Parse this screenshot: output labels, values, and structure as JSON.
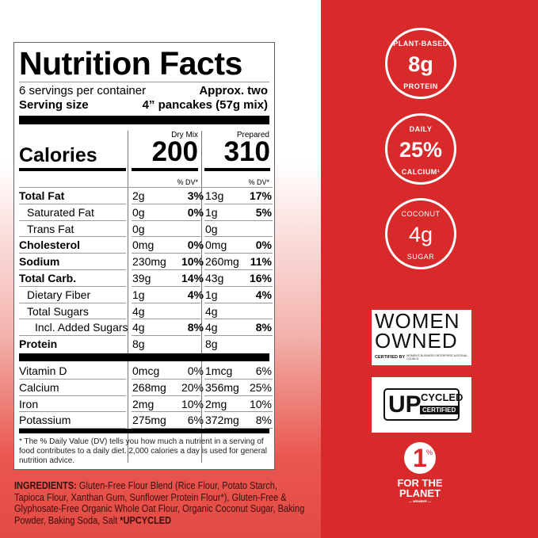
{
  "label": {
    "title": "Nutrition Facts",
    "servings": "6 servings per container",
    "serving_size_label": "Serving size",
    "serving_size_line1": "Approx. two",
    "serving_size_line2": "4” pancakes (57g mix)",
    "calories_label": "Calories",
    "col1_header": "Dry Mix",
    "col2_header": "Prepared",
    "col1_calories": "200",
    "col2_calories": "310",
    "dv_header": "% DV*",
    "rows": [
      {
        "name": "Total Fat",
        "d1": "2g",
        "p1": "3%",
        "d2": "13g",
        "p2": "17%",
        "bold": true,
        "indent": 0
      },
      {
        "name": "Saturated Fat",
        "d1": "0g",
        "p1": "0%",
        "d2": "1g",
        "p2": "5%",
        "bold": false,
        "indent": 1
      },
      {
        "name": "Trans Fat",
        "d1": "0g",
        "p1": "",
        "d2": "0g",
        "p2": "",
        "bold": false,
        "indent": 1
      },
      {
        "name": "Cholesterol",
        "d1": "0mg",
        "p1": "0%",
        "d2": "0mg",
        "p2": "0%",
        "bold": true,
        "indent": 0
      },
      {
        "name": "Sodium",
        "d1": "230mg",
        "p1": "10%",
        "d2": "260mg",
        "p2": "11%",
        "bold": true,
        "indent": 0
      },
      {
        "name": "Total Carb.",
        "d1": "39g",
        "p1": "14%",
        "d2": "43g",
        "p2": "16%",
        "bold": true,
        "indent": 0
      },
      {
        "name": "Dietary Fiber",
        "d1": "1g",
        "p1": "4%",
        "d2": "1g",
        "p2": "4%",
        "bold": false,
        "indent": 1
      },
      {
        "name": "Total Sugars",
        "d1": "4g",
        "p1": "",
        "d2": "4g",
        "p2": "",
        "bold": false,
        "indent": 1
      },
      {
        "name": "Incl. Added Sugars",
        "d1": "4g",
        "p1": "8%",
        "d2": "4g",
        "p2": "8%",
        "bold": false,
        "indent": 2
      },
      {
        "name": "Protein",
        "d1": "8g",
        "p1": "",
        "d2": "8g",
        "p2": "",
        "bold": true,
        "indent": 0
      }
    ],
    "vitamins": [
      {
        "name": "Vitamin D",
        "d1": "0mcg",
        "p1": "0%",
        "d2": "1mcg",
        "p2": "6%"
      },
      {
        "name": "Calcium",
        "d1": "268mg",
        "p1": "20%",
        "d2": "356mg",
        "p2": "25%"
      },
      {
        "name": "Iron",
        "d1": "2mg",
        "p1": "10%",
        "d2": "2mg",
        "p2": "10%"
      },
      {
        "name": "Potassium",
        "d1": "275mg",
        "p1": "6%",
        "d2": "372mg",
        "p2": "8%"
      }
    ],
    "footnote": "* The % Daily Value (DV) tells you how much a nutrient in a serving of food contributes to a daily diet. 2,000 calories a day is used for general nutrition advice."
  },
  "ingredients": {
    "label": "INGREDIENTS:",
    "text": " Gluten-Free Flour Blend (Rice Flour, Potato Starch, Tapioca Flour, Xanthan Gum, Sunflower Protein Flour*), Gluten-Free & Glyphosate-Free Organic Whole Oat Flour, Organic Coconut Sugar, Baking Powder, Baking Soda, Salt ",
    "note": "*UPCYCLED"
  },
  "badges": [
    {
      "top": "PLANT-BASED",
      "big": "8g",
      "bottom": "PROTEIN"
    },
    {
      "top": "DAILY",
      "big": "25%",
      "bottom": "CALCIUM¹"
    },
    {
      "top": "COCONUT",
      "big": "4g",
      "bottom": "SUGAR"
    }
  ],
  "logos": {
    "women_owned": {
      "line1": "WOMEN",
      "line2": "OWNED",
      "certified": "CERTIFIED BY",
      "org": "WOMEN'S BUSINESS ENTERPRISE NATIONAL COUNCIL"
    },
    "upcycled": {
      "up": "UP",
      "cycled": "CYCLED",
      "certified": "CERTIFIED"
    },
    "planet": {
      "number": "1",
      "percent": "%",
      "line1": "FOR THE",
      "line2": "PLANET",
      "member": "— MEMBER —"
    }
  },
  "colors": {
    "panel_red": "#d8292b",
    "gradient_red": "#e44a44"
  }
}
